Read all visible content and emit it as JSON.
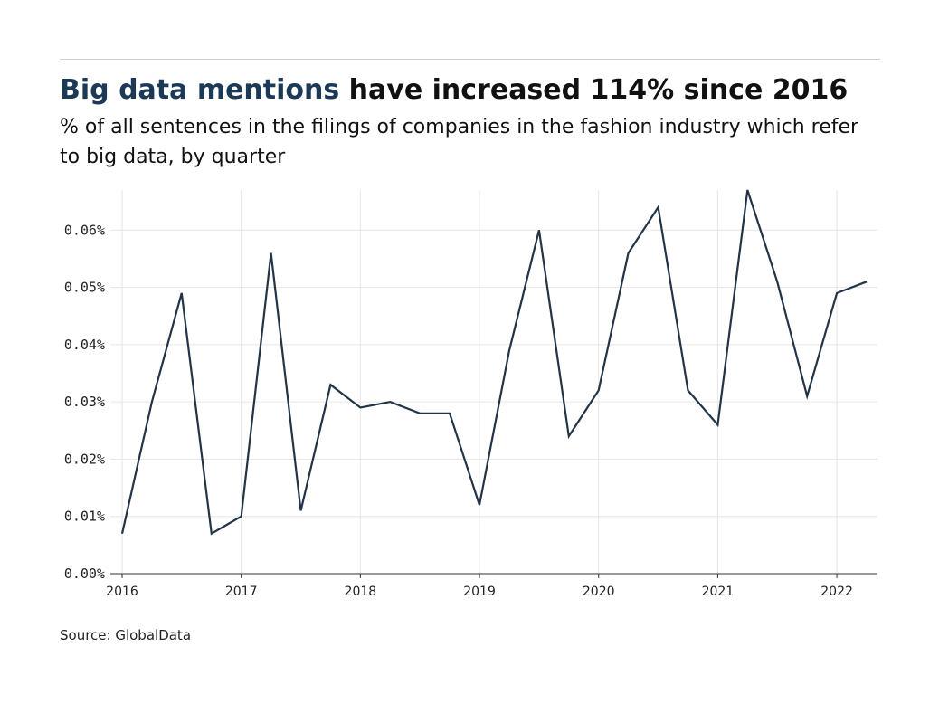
{
  "header": {
    "title_highlight": "Big data mentions",
    "title_rest": " have increased 114% since 2016",
    "subtitle": "% of all sentences in the filings of companies in the fashion industry which refer to big data, by quarter"
  },
  "footer": {
    "source": "Source: GlobalData"
  },
  "colors": {
    "line": "#233447",
    "highlight": "#1c3a56",
    "grid": "#e6e6e6"
  },
  "chart_data": {
    "type": "line",
    "title": "Big data mentions have increased 114% since 2016",
    "subtitle": "% of all sentences in the filings of companies in the fashion industry which refer to big data, by quarter",
    "xlabel": "",
    "ylabel": "",
    "x_ticks": [
      "2016",
      "2017",
      "2018",
      "2019",
      "2020",
      "2021",
      "2022"
    ],
    "y_ticks": [
      "0.00%",
      "0.01%",
      "0.02%",
      "0.03%",
      "0.04%",
      "0.05%",
      "0.06%"
    ],
    "ylim": [
      0,
      0.067
    ],
    "xlim": [
      2016,
      2022.25
    ],
    "grid": true,
    "legend": "none",
    "series": [
      {
        "x": [
          2016.0,
          2016.25,
          2016.5,
          2016.75,
          2017.0,
          2017.25,
          2017.5,
          2017.75,
          2018.0,
          2018.25,
          2018.5,
          2018.75,
          2019.0,
          2019.25,
          2019.5,
          2019.75,
          2020.0,
          2020.25,
          2020.5,
          2020.75,
          2021.0,
          2021.25,
          2021.5,
          2021.75,
          2022.0,
          2022.25
        ],
        "values": [
          0.007,
          0.03,
          0.049,
          0.007,
          0.01,
          0.056,
          0.011,
          0.033,
          0.029,
          0.03,
          0.028,
          0.028,
          0.012,
          0.039,
          0.06,
          0.024,
          0.032,
          0.056,
          0.064,
          0.032,
          0.026,
          0.067,
          0.051,
          0.031,
          0.049,
          0.051
        ]
      }
    ]
  }
}
